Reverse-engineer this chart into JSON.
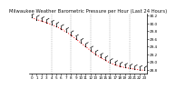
{
  "title": "Milwaukee Weather Barometric Pressure per Hour (Last 24 Hours)",
  "hours": [
    0,
    1,
    2,
    3,
    4,
    5,
    6,
    7,
    8,
    9,
    10,
    11,
    12,
    13,
    14,
    15,
    16,
    17,
    18,
    19,
    20,
    21,
    22,
    23
  ],
  "pressure": [
    30.15,
    30.1,
    30.06,
    30.02,
    29.97,
    29.92,
    29.86,
    29.78,
    29.7,
    29.6,
    29.5,
    29.4,
    29.3,
    29.2,
    29.12,
    29.05,
    28.98,
    28.93,
    28.89,
    28.86,
    28.84,
    28.82,
    28.8,
    28.79
  ],
  "ylim": [
    28.7,
    30.25
  ],
  "yticks": [
    28.8,
    29.0,
    29.2,
    29.4,
    29.6,
    29.8,
    30.0,
    30.2
  ],
  "xlim": [
    -0.5,
    23.5
  ],
  "xticks": [
    0,
    1,
    2,
    3,
    4,
    5,
    6,
    7,
    8,
    9,
    10,
    11,
    12,
    13,
    14,
    15,
    16,
    17,
    18,
    19,
    20,
    21,
    22,
    23
  ],
  "vgrid_x": [
    4,
    8,
    12,
    16,
    20
  ],
  "line_color": "#ff0000",
  "marker_color": "#000000",
  "bg_color": "#ffffff",
  "grid_color": "#888888",
  "title_fontsize": 3.8,
  "tick_fontsize": 3.0
}
